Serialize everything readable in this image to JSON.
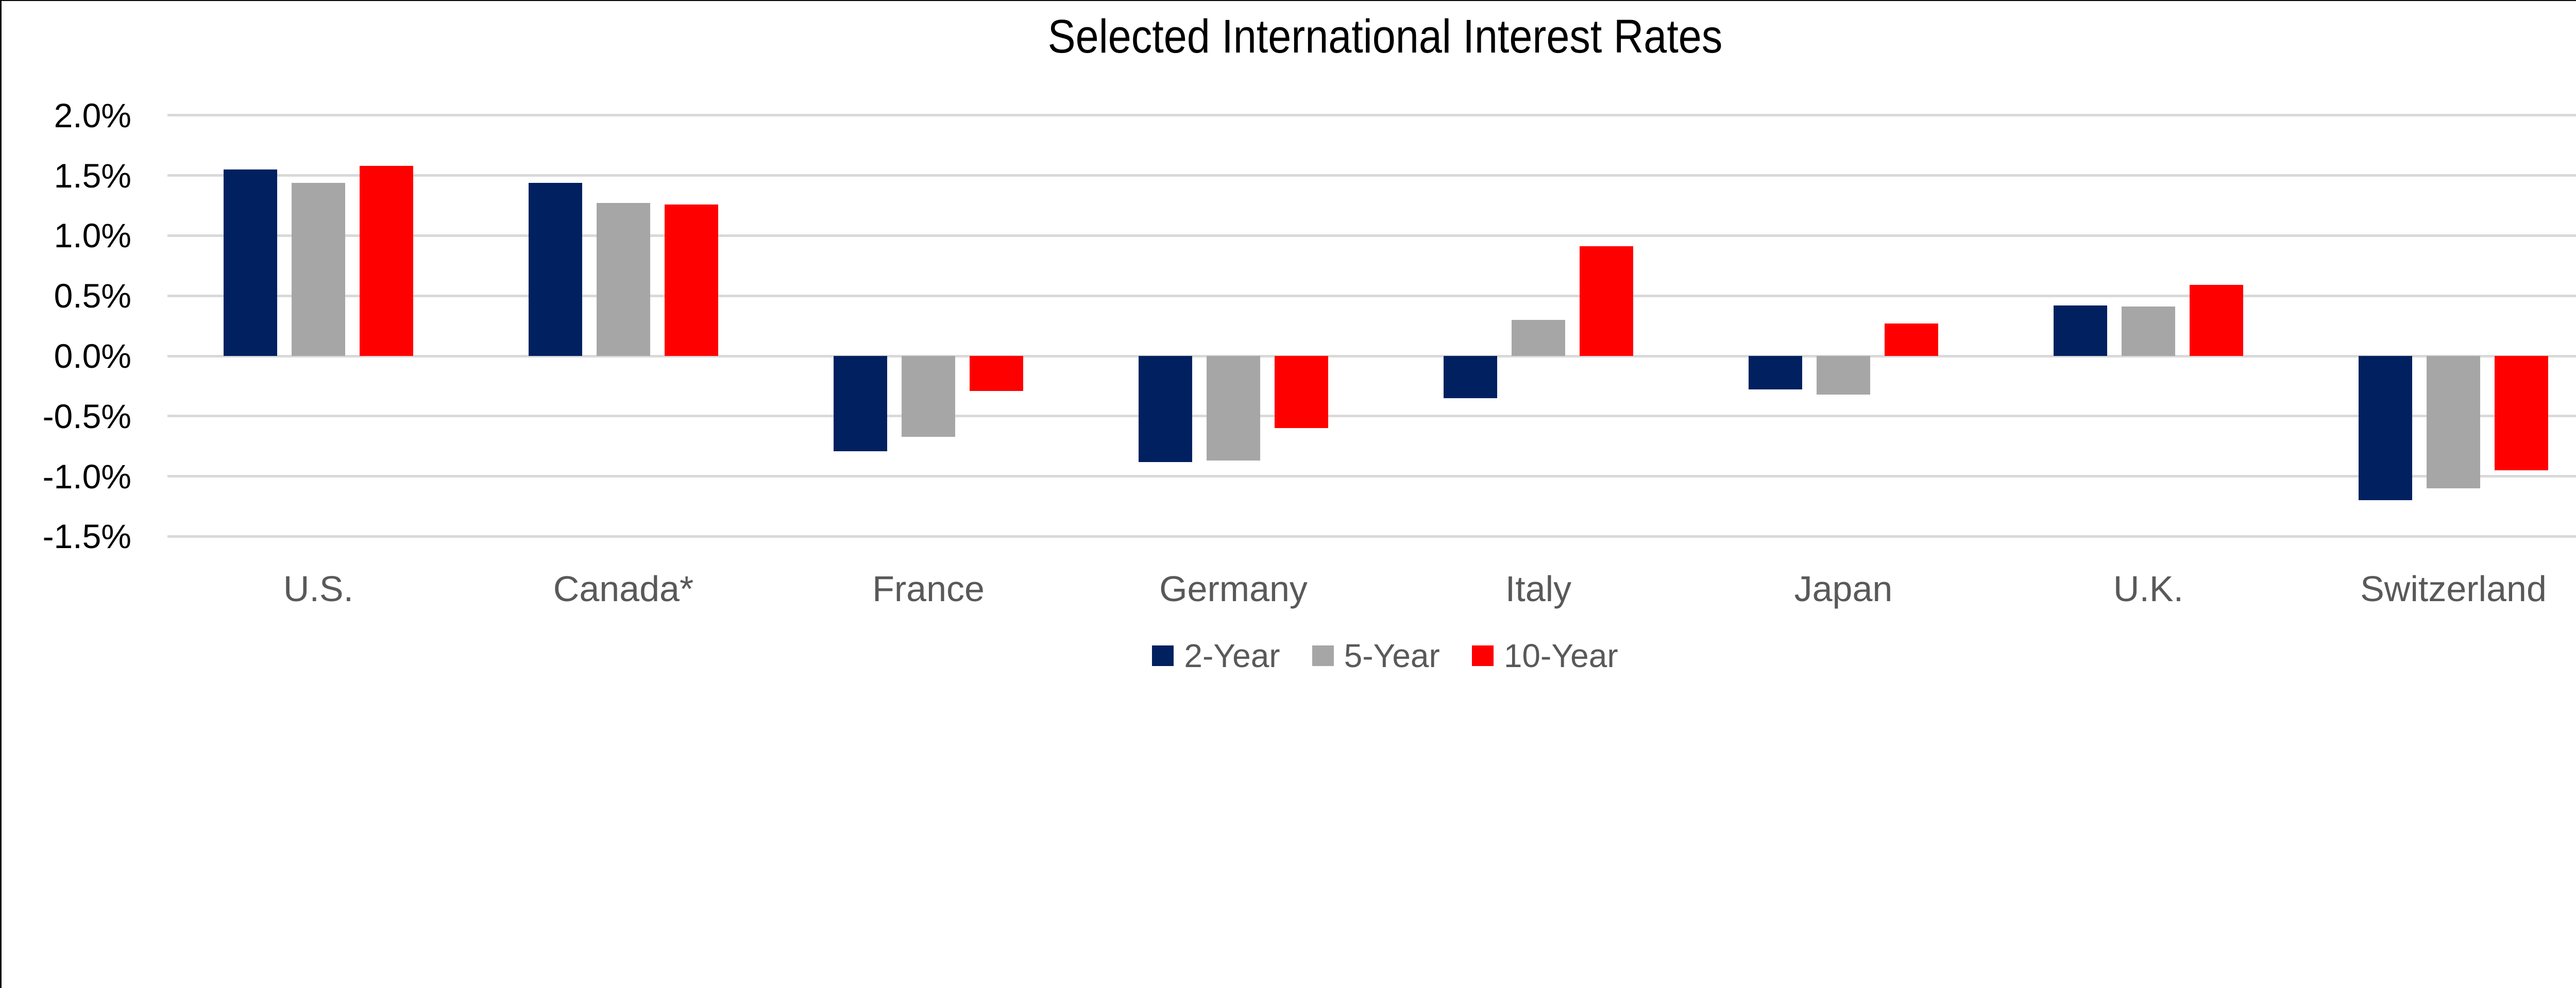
{
  "title": "Selected International Interest Rates",
  "chart_data": {
    "type": "bar",
    "title": "Selected International Interest Rates",
    "categories": [
      "U.S.",
      "Canada*",
      "France",
      "Germany",
      "Italy",
      "Japan",
      "U.K.",
      "Switzerland"
    ],
    "series": [
      {
        "name": "2-Year",
        "color": "#002060",
        "values": [
          1.55,
          1.44,
          -0.79,
          -0.88,
          -0.35,
          -0.28,
          0.42,
          -1.2
        ]
      },
      {
        "name": "5-Year",
        "color": "#A6A6A6",
        "values": [
          1.44,
          1.27,
          -0.67,
          -0.87,
          0.3,
          -0.32,
          0.41,
          -1.1
        ]
      },
      {
        "name": "10-Year",
        "color": "#FF0000",
        "values": [
          1.58,
          1.26,
          -0.29,
          -0.6,
          0.91,
          0.27,
          0.59,
          -0.95
        ]
      }
    ],
    "xlabel": "",
    "ylabel": "",
    "ylim": [
      -1.5,
      2.0
    ],
    "yticks": [
      2.0,
      1.5,
      1.0,
      0.5,
      0.0,
      -0.5,
      -1.0,
      -1.5
    ],
    "ytick_labels": [
      "2.0%",
      "1.5%",
      "1.0%",
      "0.5%",
      "0.0%",
      "-0.5%",
      "-1.0%",
      "-1.5%"
    ],
    "grid": "horizontal",
    "gridline_color": "#D9D9D9",
    "tick_label_color": "#000000",
    "category_label_color": "#595959",
    "legend_position": "bottom",
    "legend_labels": [
      "2-Year",
      "5-Year",
      "10-Year"
    ],
    "background_color": "#FFFFFF"
  }
}
